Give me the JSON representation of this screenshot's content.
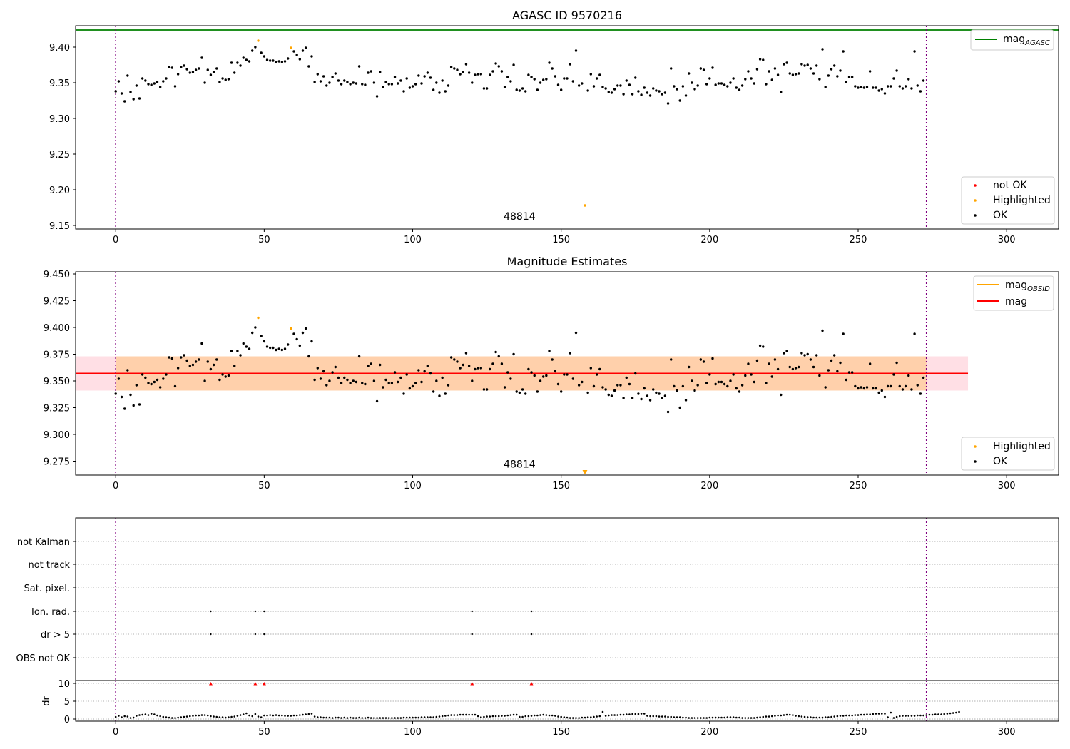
{
  "chart_data": [
    {
      "id": "top",
      "type": "scatter",
      "title": "AGASC ID 9570216",
      "xlim": [
        -13.5,
        317.5
      ],
      "ylim": [
        9.145,
        9.43
      ],
      "xticks": [
        0,
        50,
        100,
        150,
        200,
        250,
        300
      ],
      "yticks": [
        9.15,
        9.2,
        9.25,
        9.3,
        9.35,
        9.4
      ],
      "ytick_labels": [
        "9.15",
        "9.20",
        "9.25",
        "9.30",
        "9.35",
        "9.40"
      ],
      "vlines": [
        0,
        273
      ],
      "hline": {
        "y": 9.424,
        "color": "#008000"
      },
      "annotation": {
        "text": "48814",
        "x": 136,
        "y": 9.158
      },
      "highlighted_points": [
        [
          48,
          9.409
        ],
        [
          59,
          9.399
        ],
        [
          158,
          9.178
        ]
      ],
      "legend_upper": [
        {
          "label": "mag",
          "sub": "AGASC",
          "color": "#008000",
          "kind": "line"
        }
      ],
      "legend_lower": [
        {
          "label": "not OK",
          "color": "#ff0000",
          "kind": "dot"
        },
        {
          "label": "Highlighted",
          "color": "#ffa500",
          "kind": "dot"
        },
        {
          "label": "OK",
          "color": "#000000",
          "kind": "dot"
        }
      ],
      "grid": false
    },
    {
      "id": "middle",
      "type": "scatter",
      "title": "Magnitude Estimates",
      "xlim": [
        -13.5,
        317.5
      ],
      "ylim": [
        9.262,
        9.452
      ],
      "xticks": [
        0,
        50,
        100,
        150,
        200,
        250,
        300
      ],
      "yticks": [
        9.275,
        9.3,
        9.325,
        9.35,
        9.375,
        9.4,
        9.425,
        9.45
      ],
      "ytick_labels": [
        "9.275",
        "9.300",
        "9.325",
        "9.350",
        "9.375",
        "9.400",
        "9.425",
        "9.450"
      ],
      "vlines": [
        0,
        273
      ],
      "mag_line": {
        "y": 9.357,
        "x0": -13.5,
        "x1": 287,
        "color": "#ff0000"
      },
      "mag_band": {
        "y0": 9.341,
        "y1": 9.373,
        "x0": -13.5,
        "x1": 287,
        "color": "#ffc0cb"
      },
      "obsid_band": {
        "y0": 9.341,
        "y1": 9.373,
        "x0": 0,
        "x1": 273,
        "color": "#ffa500"
      },
      "obsid_line": {
        "y": 9.357,
        "x0": 0,
        "x1": 273,
        "color": "#ffa500"
      },
      "annotation": {
        "text": "48814",
        "x": 136,
        "y": 9.269
      },
      "highlighted_points": [
        [
          48,
          9.409
        ],
        [
          59,
          9.399
        ]
      ],
      "offscale_marker": {
        "x": 158,
        "color": "#ffa500"
      },
      "legend_upper": [
        {
          "label": "mag",
          "sub": "OBSID",
          "color": "#ffa500",
          "kind": "line"
        },
        {
          "label": "mag",
          "sub": "",
          "color": "#ff0000",
          "kind": "line"
        }
      ],
      "legend_lower": [
        {
          "label": "Highlighted",
          "color": "#ffa500",
          "kind": "dot"
        },
        {
          "label": "OK",
          "color": "#000000",
          "kind": "dot"
        }
      ],
      "grid": false
    },
    {
      "id": "flags",
      "type": "scatter",
      "xlim": [
        -13.5,
        317.5
      ],
      "categories": [
        "not Kalman",
        "not track",
        "Sat. pixel.",
        "Ion. rad.",
        "dr > 5",
        "OBS not OK"
      ],
      "vlines": [
        0,
        273
      ],
      "flagged": {
        "Ion. rad.": [
          32,
          47,
          50,
          120,
          140
        ],
        "dr > 5": [
          32,
          47,
          50,
          120,
          140
        ]
      },
      "grid": true
    },
    {
      "id": "dr",
      "type": "scatter",
      "ylabel": "dr",
      "xlim": [
        -13.5,
        317.5
      ],
      "ylim": [
        -0.6,
        10.8
      ],
      "yticks": [
        0,
        5,
        10
      ],
      "ytick_labels": [
        "0",
        "5",
        "10"
      ],
      "xticks": [
        0,
        50,
        100,
        150,
        200,
        250,
        300
      ],
      "vlines": [
        0,
        273
      ],
      "red_markers": [
        32,
        47,
        50,
        120,
        140
      ],
      "grid": true
    }
  ],
  "series": {
    "mag_n": 274,
    "mag_values": [
      9.338,
      9.352,
      9.335,
      9.324,
      9.36,
      9.337,
      9.327,
      9.346,
      9.328,
      9.356,
      9.353,
      9.348,
      9.347,
      9.349,
      9.351,
      9.344,
      9.352,
      9.356,
      9.372,
      9.371,
      9.345,
      9.362,
      9.372,
      9.374,
      9.369,
      9.364,
      9.365,
      9.368,
      9.37,
      9.385,
      9.35,
      9.368,
      9.361,
      9.365,
      9.37,
      9.351,
      9.356,
      9.354,
      9.355,
      9.378,
      9.364,
      9.378,
      9.374,
      9.385,
      9.382,
      9.38,
      9.395,
      9.4,
      9.409,
      9.392,
      9.387,
      9.382,
      9.381,
      9.381,
      9.379,
      9.38,
      9.379,
      9.38,
      9.384,
      9.399,
      9.394,
      9.389,
      9.383,
      9.395,
      9.399,
      9.373,
      9.387,
      9.351,
      9.362,
      9.352,
      9.359,
      9.346,
      9.35,
      9.358,
      9.363,
      9.353,
      9.348,
      9.353,
      9.351,
      9.348,
      9.35,
      9.349,
      9.373,
      9.348,
      9.347,
      9.364,
      9.366,
      9.35,
      9.331,
      9.365,
      9.344,
      9.351,
      9.348,
      9.348,
      9.358,
      9.349,
      9.353,
      9.338,
      9.356,
      9.343,
      9.345,
      9.348,
      9.36,
      9.349,
      9.359,
      9.364,
      9.357,
      9.34,
      9.35,
      9.336,
      9.353,
      9.338,
      9.346,
      9.372,
      9.37,
      9.368,
      9.362,
      9.365,
      9.376,
      9.364,
      9.35,
      9.361,
      9.362,
      9.362,
      9.342,
      9.342,
      9.361,
      9.366,
      9.377,
      9.373,
      9.366,
      9.344,
      9.358,
      9.352,
      9.375,
      9.34,
      9.339,
      9.342,
      9.338,
      9.361,
      9.358,
      9.355,
      9.34,
      9.35,
      9.354,
      9.355,
      9.378,
      9.37,
      9.359,
      9.347,
      9.34,
      9.356,
      9.356,
      9.376,
      9.352,
      9.395,
      9.346,
      9.349,
      9.178,
      9.339,
      9.362,
      9.345,
      9.356,
      9.361,
      9.344,
      9.342,
      9.337,
      9.336,
      9.341,
      9.346,
      9.346,
      9.334,
      9.353,
      9.347,
      9.334,
      9.357,
      9.338,
      9.333,
      9.343,
      9.336,
      9.332,
      9.342,
      9.339,
      9.338,
      9.334,
      9.336,
      9.321,
      9.37,
      9.345,
      9.341,
      9.325,
      9.345,
      9.332,
      9.363,
      9.35,
      9.341,
      9.346,
      9.37,
      9.368,
      9.348,
      9.356,
      9.371,
      9.347,
      9.349,
      9.349,
      9.347,
      9.345,
      9.35,
      9.356,
      9.343,
      9.34,
      9.346,
      9.355,
      9.366,
      9.356,
      9.349,
      9.369,
      9.383,
      9.382,
      9.348,
      9.366,
      9.354,
      9.37,
      9.361,
      9.337,
      9.376,
      9.378,
      9.363,
      9.361,
      9.362,
      9.363,
      9.376,
      9.374,
      9.375,
      9.37,
      9.363,
      9.374,
      9.355,
      9.397,
      9.344,
      9.36,
      9.369,
      9.374,
      9.359,
      9.367,
      9.394,
      9.351,
      9.358,
      9.358,
      9.345,
      9.343,
      9.344,
      9.343,
      9.344,
      9.366,
      9.343,
      9.343,
      9.339,
      9.341,
      9.335,
      9.345,
      9.345,
      9.356,
      9.367,
      9.345,
      9.342,
      9.345,
      9.355,
      9.342,
      9.394,
      9.346,
      9.338,
      9.353
    ],
    "dr_values": [
      0.6,
      0.9,
      0.5,
      0.8,
      0.7,
      0.3,
      0.4,
      0.9,
      1.1,
      1.2,
      1.3,
      1.1,
      1.5,
      1.3,
      1.0,
      0.8,
      0.6,
      0.5,
      0.4,
      0.3,
      0.3,
      0.4,
      0.5,
      0.6,
      0.7,
      0.8,
      0.9,
      1.0,
      1.0,
      1.1,
      1.1,
      1.0,
      0.8,
      0.7,
      0.6,
      0.5,
      0.5,
      0.4,
      0.5,
      0.6,
      0.7,
      0.9,
      1.1,
      1.3,
      1.6,
      1.0,
      0.8,
      1.4,
      0.7,
      0.5,
      1.0,
      1.0,
      1.1,
      1.0,
      1.1,
      1.0,
      1.0,
      0.9,
      0.9,
      0.9,
      1.0,
      1.0,
      1.1,
      1.2,
      1.3,
      1.4,
      1.5,
      0.7,
      0.5,
      0.5,
      0.4,
      0.4,
      0.4,
      0.3,
      0.4,
      0.4,
      0.3,
      0.4,
      0.3,
      0.4,
      0.3,
      0.3,
      0.4,
      0.3,
      0.3,
      0.4,
      0.3,
      0.3,
      0.3,
      0.3,
      0.3,
      0.3,
      0.3,
      0.3,
      0.3,
      0.3,
      0.3,
      0.4,
      0.4,
      0.4,
      0.4,
      0.4,
      0.4,
      0.5,
      0.5,
      0.5,
      0.5,
      0.5,
      0.6,
      0.7,
      0.8,
      0.9,
      1.0,
      1.1,
      1.1,
      1.1,
      1.2,
      1.2,
      1.2,
      1.2,
      1.2,
      1.2,
      0.8,
      0.5,
      0.6,
      0.7,
      0.7,
      0.8,
      0.8,
      0.8,
      0.9,
      0.9,
      1.0,
      1.1,
      1.2,
      1.2,
      0.6,
      0.6,
      0.8,
      0.8,
      0.9,
      1.0,
      1.0,
      1.1,
      1.2,
      1.1,
      1.0,
      1.0,
      0.9,
      0.7,
      0.6,
      0.5,
      0.4,
      0.3,
      0.3,
      0.3,
      0.3,
      0.4,
      0.4,
      0.5,
      0.5,
      0.6,
      0.7,
      0.8,
      2.0,
      0.9,
      1.0,
      1.1,
      1.1,
      1.1,
      1.2,
      1.2,
      1.3,
      1.3,
      1.4,
      1.4,
      1.4,
      1.5,
      1.5,
      0.9,
      0.8,
      0.8,
      0.8,
      0.7,
      0.7,
      0.7,
      0.6,
      0.6,
      0.5,
      0.5,
      0.5,
      0.4,
      0.4,
      0.3,
      0.3,
      0.3,
      0.3,
      0.3,
      0.3,
      0.3,
      0.4,
      0.4,
      0.4,
      0.4,
      0.4,
      0.4,
      0.5,
      0.5,
      0.5,
      0.4,
      0.4,
      0.3,
      0.3,
      0.3,
      0.3,
      0.3,
      0.4,
      0.5,
      0.6,
      0.7,
      0.7,
      0.8,
      0.9,
      1.0,
      1.0,
      1.1,
      1.2,
      1.2,
      1.1,
      0.9,
      0.8,
      0.7,
      0.6,
      0.5,
      0.5,
      0.4,
      0.4,
      0.4,
      0.4,
      0.5,
      0.5,
      0.6,
      0.7,
      0.8,
      0.9,
      0.9,
      1.0,
      1.0,
      1.0,
      1.1,
      1.1,
      1.2,
      1.2,
      1.3,
      1.3,
      1.4,
      1.5,
      1.5,
      1.5,
      1.5,
      0.5,
      1.8,
      0.3,
      0.6,
      0.8,
      0.9,
      0.9,
      0.9,
      0.9,
      0.9,
      1.0,
      1.0,
      1.0,
      1.1,
      1.2,
      1.2,
      1.3,
      1.3,
      1.3,
      1.4,
      1.5,
      1.6,
      1.7,
      1.8,
      2.0
    ]
  }
}
